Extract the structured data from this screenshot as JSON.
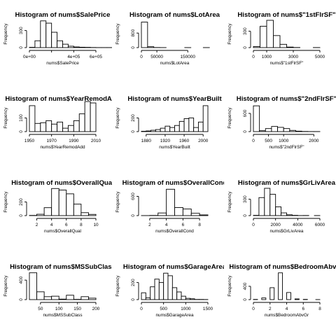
{
  "chart_data": [
    {
      "type": "bar",
      "title": "Histogram of nums$SalePrice",
      "xlabel": "nums$SalePrice",
      "ylabel": "Frequency",
      "bin_edges": [
        0,
        50000,
        100000,
        150000,
        200000,
        250000,
        300000,
        350000,
        400000,
        450000,
        500000,
        550000,
        600000,
        650000,
        700000,
        750000,
        800000
      ],
      "counts": [
        5,
        120,
        470,
        430,
        270,
        120,
        60,
        25,
        12,
        7,
        5,
        2,
        1,
        1,
        1,
        1
      ],
      "x_ticks": [
        0,
        200000,
        400000,
        600000
      ],
      "x_tick_labels": [
        "0e+00",
        "",
        "4e+05",
        "6e+05"
      ],
      "y_ticks": [
        0,
        300
      ],
      "y_tick_labels": [
        "0",
        "300"
      ],
      "xlim": [
        0,
        600000
      ],
      "ylim": [
        0,
        480
      ]
    },
    {
      "type": "bar",
      "title": "Histogram of nums$LotArea",
      "xlabel": "nums$LotArea",
      "ylabel": "Frequency",
      "bin_edges": [
        0,
        20000,
        40000,
        60000,
        80000,
        100000,
        120000,
        140000,
        160000,
        180000,
        200000,
        220000
      ],
      "counts": [
        1400,
        50,
        5,
        1,
        0,
        0,
        0,
        1,
        0,
        0,
        1
      ],
      "x_ticks": [
        0,
        50000,
        150000
      ],
      "x_tick_labels": [
        "0",
        "50000",
        "150000"
      ],
      "y_ticks": [
        0,
        800
      ],
      "y_tick_labels": [
        "0",
        "800"
      ],
      "xlim": [
        0,
        215000
      ],
      "ylim": [
        0,
        1500
      ]
    },
    {
      "type": "bar",
      "title": "Histogram of nums$\"1stFlrSF\"",
      "xlabel": "nums$\"1stFlrSF\"",
      "ylabel": "Frequency",
      "bin_edges": [
        0,
        500,
        1000,
        1500,
        2000,
        2500,
        3000,
        3500,
        4000,
        4500,
        5000
      ],
      "counts": [
        20,
        390,
        500,
        220,
        60,
        10,
        2,
        0,
        0,
        1
      ],
      "x_ticks": [
        0,
        1000,
        3000,
        5000
      ],
      "x_tick_labels": [
        "0",
        "1000",
        "3000",
        "5000"
      ],
      "y_ticks": [
        0,
        300
      ],
      "y_tick_labels": [
        "0",
        "300"
      ],
      "xlim": [
        0,
        5000
      ],
      "ylim": [
        0,
        500
      ]
    },
    {
      "type": "bar",
      "title": "Histogram of nums$YearRemodAdd",
      "xlabel": "nums$YearRemodAdd",
      "ylabel": "Frequency",
      "bin_edges": [
        1950,
        1955,
        1960,
        1965,
        1970,
        1975,
        1980,
        1985,
        1990,
        1995,
        2000,
        2005,
        2010
      ],
      "counts": [
        190,
        60,
        65,
        80,
        55,
        70,
        25,
        45,
        80,
        130,
        220,
        210
      ],
      "x_ticks": [
        1950,
        1970,
        1990,
        2010
      ],
      "x_tick_labels": [
        "1950",
        "1970",
        "1990",
        "2010"
      ],
      "y_ticks": [
        0,
        100
      ],
      "y_tick_labels": [
        "0",
        "100"
      ],
      "xlim": [
        1950,
        2010
      ],
      "ylim": [
        0,
        200
      ]
    },
    {
      "type": "bar",
      "title": "Histogram of nums$YearBuilt",
      "xlabel": "nums$YearBuilt",
      "ylabel": "Frequency",
      "bin_edges": [
        1870,
        1880,
        1890,
        1900,
        1910,
        1920,
        1930,
        1940,
        1950,
        1960,
        1970,
        1980,
        1990,
        2000,
        2010
      ],
      "counts": [
        5,
        10,
        20,
        30,
        50,
        80,
        60,
        90,
        150,
        190,
        200,
        60,
        140,
        380
      ],
      "x_ticks": [
        1880,
        1920,
        1960,
        2000
      ],
      "x_tick_labels": [
        "1880",
        "1920",
        "1960",
        "2000"
      ],
      "y_ticks": [
        0,
        200
      ],
      "y_tick_labels": [
        "0",
        "200"
      ],
      "xlim": [
        1870,
        2010
      ],
      "ylim": [
        0,
        400
      ]
    },
    {
      "type": "bar",
      "title": "Histogram of nums$\"2ndFlrSF\"",
      "xlabel": "nums$\"2ndFlrSF\"",
      "ylabel": "Frequency",
      "bin_edges": [
        0,
        200,
        400,
        600,
        800,
        1000,
        1200,
        1400,
        1600,
        1800,
        2000,
        2200
      ],
      "counts": [
        850,
        30,
        100,
        170,
        140,
        100,
        40,
        15,
        5,
        2,
        2
      ],
      "x_ticks": [
        0,
        500,
        1000,
        2000
      ],
      "x_tick_labels": [
        "0",
        "500",
        "1000",
        "2000"
      ],
      "y_ticks": [
        0,
        600
      ],
      "y_tick_labels": [
        "0",
        "600"
      ],
      "xlim": [
        0,
        2200
      ],
      "ylim": [
        0,
        900
      ]
    },
    {
      "type": "bar",
      "title": "Histogram of nums$OverallQual",
      "xlabel": "nums$OverallQual",
      "ylabel": "Frequency",
      "bin_edges": [
        1,
        2,
        3,
        4,
        5,
        6,
        7,
        8,
        9,
        10
      ],
      "counts": [
        3,
        20,
        116,
        397,
        374,
        319,
        168,
        43,
        18
      ],
      "x_ticks": [
        2,
        4,
        6,
        8,
        10
      ],
      "x_tick_labels": [
        "2",
        "4",
        "6",
        "8",
        "10"
      ],
      "y_ticks": [
        0,
        200
      ],
      "y_tick_labels": [
        "0",
        "200"
      ],
      "xlim": [
        1,
        10
      ],
      "ylim": [
        0,
        400
      ]
    },
    {
      "type": "bar",
      "title": "Histogram of nums$OverallCond",
      "xlabel": "nums$OverallCond",
      "ylabel": "Frequency",
      "bin_edges": [
        1,
        2,
        3,
        4,
        5,
        6,
        7,
        8,
        9
      ],
      "counts": [
        1,
        5,
        82,
        821,
        252,
        205,
        72,
        22
      ],
      "x_ticks": [
        2,
        4,
        6,
        8
      ],
      "x_tick_labels": [
        "2",
        "4",
        "6",
        "8"
      ],
      "y_ticks": [
        0,
        600
      ],
      "y_tick_labels": [
        "0",
        "600"
      ],
      "xlim": [
        1,
        9
      ],
      "ylim": [
        0,
        850
      ]
    },
    {
      "type": "bar",
      "title": "Histogram of nums$GrLivArea",
      "xlabel": "nums$GrLivArea",
      "ylabel": "Frequency",
      "bin_edges": [
        0,
        500,
        1000,
        1500,
        2000,
        2500,
        3000,
        3500,
        4000,
        4500,
        5000,
        5500,
        6000
      ],
      "counts": [
        5,
        330,
        500,
        390,
        160,
        50,
        15,
        5,
        1,
        2,
        0,
        1
      ],
      "x_ticks": [
        0,
        2000,
        4000,
        6000
      ],
      "x_tick_labels": [
        "0",
        "2000",
        "4000",
        "6000"
      ],
      "y_ticks": [
        0,
        300
      ],
      "y_tick_labels": [
        "0",
        "300"
      ],
      "xlim": [
        0,
        6000
      ],
      "ylim": [
        0,
        500
      ]
    },
    {
      "type": "bar",
      "title": "Histogram of nums$MSSubClass",
      "xlabel": "nums$MSSubClass",
      "ylabel": "Frequency",
      "bin_edges": [
        20,
        40,
        60,
        80,
        100,
        120,
        140,
        160,
        180,
        200
      ],
      "counts": [
        550,
        160,
        60,
        70,
        10,
        90,
        5,
        60,
        30
      ],
      "x_ticks": [
        50,
        100,
        150,
        200
      ],
      "x_tick_labels": [
        "50",
        "100",
        "150",
        "200"
      ],
      "y_ticks": [
        0,
        400
      ],
      "y_tick_labels": [
        "0",
        "400"
      ],
      "xlim": [
        20,
        200
      ],
      "ylim": [
        0,
        560
      ]
    },
    {
      "type": "bar",
      "title": "Histogram of nums$GarageArea",
      "xlabel": "nums$GarageArea",
      "ylabel": "Frequency",
      "bin_edges": [
        0,
        100,
        200,
        300,
        400,
        500,
        600,
        700,
        800,
        900,
        1000,
        1100,
        1200,
        1300,
        1400,
        1500
      ],
      "counts": [
        80,
        20,
        150,
        240,
        200,
        310,
        280,
        140,
        90,
        40,
        15,
        10,
        2,
        2,
        1
      ],
      "x_ticks": [
        0,
        500,
        1000,
        1500
      ],
      "x_tick_labels": [
        "0",
        "500",
        "1000",
        "1500"
      ],
      "y_ticks": [
        0,
        200
      ],
      "y_tick_labels": [
        "0",
        "200"
      ],
      "xlim": [
        0,
        1500
      ],
      "ylim": [
        0,
        320
      ]
    },
    {
      "type": "bar",
      "title": "Histogram of nums$BedroomAbvGr",
      "xlabel": "nums$BedroomAbvGr",
      "ylabel": "Frequency",
      "bin_edges": [
        0,
        0.5,
        1,
        1.5,
        2,
        2.5,
        3,
        3.5,
        4,
        4.5,
        5,
        5.5,
        6,
        6.5,
        7,
        7.5,
        8
      ],
      "counts": [
        6,
        0,
        50,
        0,
        358,
        0,
        804,
        0,
        213,
        0,
        21,
        0,
        7,
        0,
        0,
        1
      ],
      "x_ticks": [
        0,
        2,
        4,
        6,
        8
      ],
      "x_tick_labels": [
        "0",
        "2",
        "4",
        "6",
        "8"
      ],
      "y_ticks": [
        0,
        400
      ],
      "y_tick_labels": [
        "0",
        "400"
      ],
      "xlim": [
        0,
        8
      ],
      "ylim": [
        0,
        820
      ]
    }
  ]
}
